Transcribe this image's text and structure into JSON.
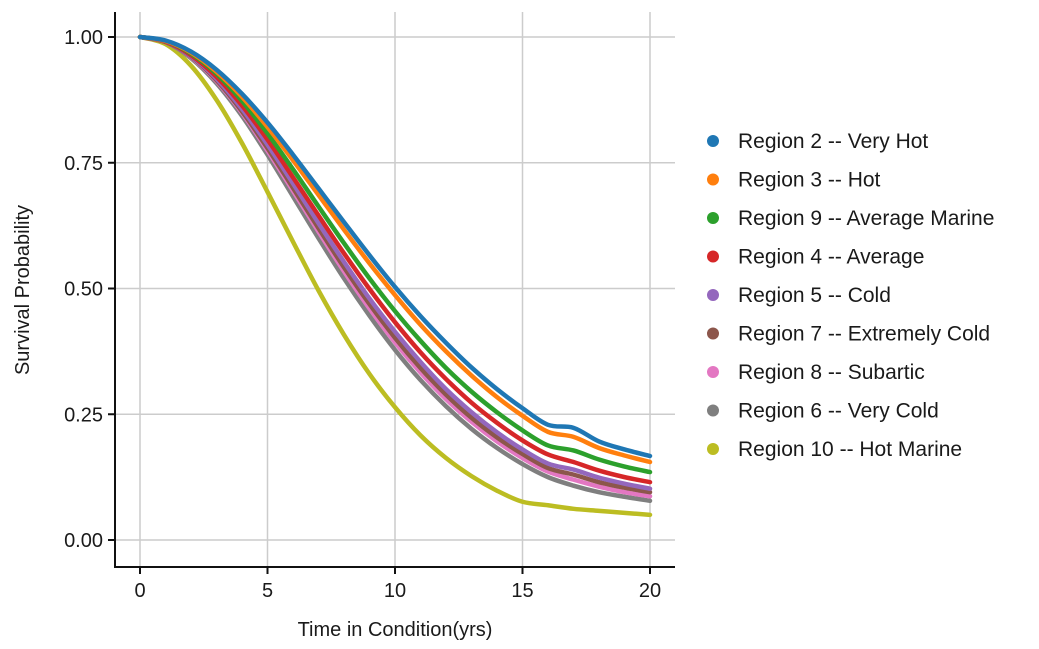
{
  "chart_data": {
    "type": "line",
    "title": "",
    "xlabel": "Time in Condition(yrs)",
    "ylabel": "Survival Probability",
    "xlim": [
      0,
      20
    ],
    "ylim": [
      0,
      1
    ],
    "x_ticks": [
      0,
      5,
      10,
      15,
      20
    ],
    "x_tick_labels": [
      "0",
      "5",
      "10",
      "15",
      "20"
    ],
    "y_ticks": [
      0,
      0.25,
      0.5,
      0.75,
      1.0
    ],
    "y_tick_labels": [
      "0.00",
      "0.25",
      "0.50",
      "0.75",
      "1.00"
    ],
    "grid": true,
    "legend_position": "right",
    "x": [
      0,
      1,
      2,
      3,
      4,
      5,
      6,
      7,
      8,
      9,
      10,
      11,
      12,
      13,
      14,
      15,
      16,
      17,
      18,
      19,
      20
    ],
    "series": [
      {
        "name": "Region 2 -- Very Hot",
        "color": "#1f77b4",
        "values": [
          1.0,
          0.993,
          0.971,
          0.935,
          0.887,
          0.83,
          0.766,
          0.699,
          0.632,
          0.566,
          0.503,
          0.445,
          0.392,
          0.343,
          0.3,
          0.262,
          0.229,
          0.223,
          0.196,
          0.18,
          0.167
        ]
      },
      {
        "name": "Region 3 -- Hot",
        "color": "#ff7f0e",
        "values": [
          1.0,
          0.992,
          0.969,
          0.931,
          0.881,
          0.821,
          0.755,
          0.686,
          0.617,
          0.55,
          0.487,
          0.428,
          0.375,
          0.327,
          0.284,
          0.247,
          0.215,
          0.205,
          0.183,
          0.168,
          0.155
        ]
      },
      {
        "name": "Region 9 -- Average Marine",
        "color": "#2ca02c",
        "values": [
          1.0,
          0.992,
          0.967,
          0.927,
          0.873,
          0.808,
          0.737,
          0.663,
          0.59,
          0.52,
          0.455,
          0.396,
          0.342,
          0.295,
          0.254,
          0.218,
          0.188,
          0.178,
          0.16,
          0.146,
          0.135
        ]
      },
      {
        "name": "Region 4 -- Average",
        "color": "#d62728",
        "values": [
          1.0,
          0.991,
          0.964,
          0.921,
          0.864,
          0.796,
          0.721,
          0.645,
          0.57,
          0.499,
          0.433,
          0.373,
          0.32,
          0.273,
          0.233,
          0.198,
          0.17,
          0.155,
          0.138,
          0.125,
          0.115
        ]
      },
      {
        "name": "Region 5 -- Cold",
        "color": "#9467bd",
        "values": [
          1.0,
          0.991,
          0.962,
          0.917,
          0.857,
          0.786,
          0.709,
          0.63,
          0.553,
          0.48,
          0.414,
          0.354,
          0.3,
          0.254,
          0.214,
          0.18,
          0.152,
          0.14,
          0.124,
          0.112,
          0.102
        ]
      },
      {
        "name": "Region 7 -- Extremely Cold",
        "color": "#8c564b",
        "values": [
          1.0,
          0.99,
          0.961,
          0.914,
          0.852,
          0.779,
          0.7,
          0.62,
          0.542,
          0.469,
          0.402,
          0.342,
          0.289,
          0.243,
          0.204,
          0.171,
          0.143,
          0.13,
          0.115,
          0.104,
          0.095
        ]
      },
      {
        "name": "Region 8 -- Subartic",
        "color": "#e377c2",
        "values": [
          1.0,
          0.99,
          0.96,
          0.912,
          0.849,
          0.774,
          0.694,
          0.613,
          0.534,
          0.46,
          0.393,
          0.333,
          0.28,
          0.235,
          0.196,
          0.163,
          0.136,
          0.12,
          0.106,
          0.095,
          0.087
        ]
      },
      {
        "name": "Region 6 -- Very Cold",
        "color": "#7f7f7f",
        "values": [
          1.0,
          0.99,
          0.958,
          0.908,
          0.843,
          0.766,
          0.683,
          0.6,
          0.52,
          0.446,
          0.378,
          0.318,
          0.266,
          0.221,
          0.183,
          0.151,
          0.125,
          0.108,
          0.095,
          0.086,
          0.078
        ]
      },
      {
        "name": "Region 10 -- Hot Marine",
        "color": "#bcbd22",
        "values": [
          1.0,
          0.986,
          0.943,
          0.875,
          0.789,
          0.692,
          0.593,
          0.496,
          0.408,
          0.33,
          0.264,
          0.208,
          0.163,
          0.127,
          0.098,
          0.076,
          0.069,
          0.062,
          0.058,
          0.054,
          0.05
        ]
      }
    ]
  }
}
